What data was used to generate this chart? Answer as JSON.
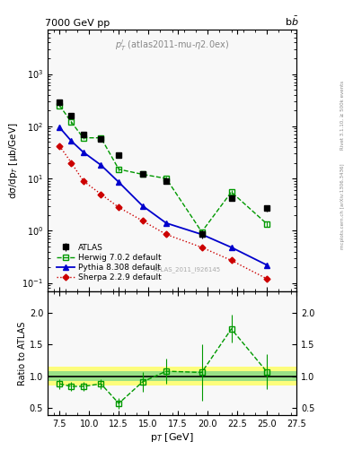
{
  "title_left": "7000 GeV pp",
  "title_right": "b$\\bar{b}$",
  "watermark": "ATLAS_2011_I926145",
  "xlabel": "p$_T$ [GeV]",
  "ylabel_main": "dσ/dp$_T$ [μb/GeV]",
  "ylabel_ratio": "Ratio to ATLAS",
  "right_label_top": "Rivet 3.1.10, ≥ 500k events",
  "right_label_bot": "mcplots.cern.ch [arXiv:1306.3436]",
  "xlim": [
    6.5,
    27.5
  ],
  "ylim_main": [
    0.07,
    7000
  ],
  "ylim_ratio": [
    0.38,
    2.35
  ],
  "atlas_x": [
    7.5,
    8.5,
    9.5,
    11.0,
    12.5,
    14.5,
    16.5,
    19.5,
    22.0,
    25.0
  ],
  "atlas_y": [
    290,
    160,
    70,
    58,
    28,
    12,
    9,
    0.85,
    4.2,
    2.7
  ],
  "atlas_yerr": [
    25,
    15,
    7,
    5,
    2.5,
    1.2,
    1.2,
    0.15,
    0.5,
    0.4
  ],
  "herwig_x": [
    7.5,
    8.5,
    9.5,
    11.0,
    12.5,
    14.5,
    16.5,
    19.5,
    22.0,
    25.0
  ],
  "herwig_y": [
    250,
    120,
    60,
    60,
    15,
    12,
    10,
    0.95,
    5.5,
    1.35
  ],
  "herwig_yerr": [
    15,
    8,
    4,
    4,
    1.2,
    0.8,
    0.8,
    0.08,
    0.4,
    0.15
  ],
  "pythia_x": [
    7.5,
    8.5,
    9.5,
    11.0,
    12.5,
    14.5,
    16.5,
    19.5,
    22.0,
    25.0
  ],
  "pythia_y": [
    95,
    52,
    32,
    18,
    8.5,
    3.0,
    1.4,
    0.85,
    0.48,
    0.22
  ],
  "pythia_yerr": [
    5,
    3,
    2,
    1,
    0.5,
    0.2,
    0.1,
    0.06,
    0.04,
    0.02
  ],
  "sherpa_x": [
    7.5,
    8.5,
    9.5,
    11.0,
    12.5,
    14.5,
    16.5,
    19.5,
    22.0,
    25.0
  ],
  "sherpa_y": [
    42,
    20,
    9,
    5.0,
    2.8,
    1.55,
    0.85,
    0.48,
    0.27,
    0.12
  ],
  "sherpa_yerr": [
    3,
    1.5,
    0.8,
    0.4,
    0.25,
    0.12,
    0.08,
    0.04,
    0.025,
    0.012
  ],
  "ratio_x": [
    7.5,
    8.5,
    9.5,
    11.0,
    12.5,
    14.5,
    16.5,
    19.5,
    22.0,
    25.0
  ],
  "ratio_y": [
    0.88,
    0.84,
    0.84,
    0.88,
    0.57,
    0.91,
    1.08,
    1.06,
    1.75,
    1.07
  ],
  "ratio_yerr_lo": [
    0.08,
    0.07,
    0.07,
    0.08,
    0.09,
    0.15,
    0.2,
    0.45,
    0.22,
    0.28
  ],
  "ratio_yerr_hi": [
    0.08,
    0.07,
    0.07,
    0.08,
    0.09,
    0.15,
    0.2,
    0.45,
    0.22,
    0.28
  ],
  "band_green_lo": 0.92,
  "band_green_hi": 1.08,
  "band_yellow_lo": 0.85,
  "band_yellow_hi": 1.15,
  "atlas_color": "#000000",
  "herwig_color": "#009900",
  "pythia_color": "#0000cc",
  "sherpa_color": "#cc0000",
  "bg_color": "#ffffff",
  "panel_bg": "#f8f8f8"
}
